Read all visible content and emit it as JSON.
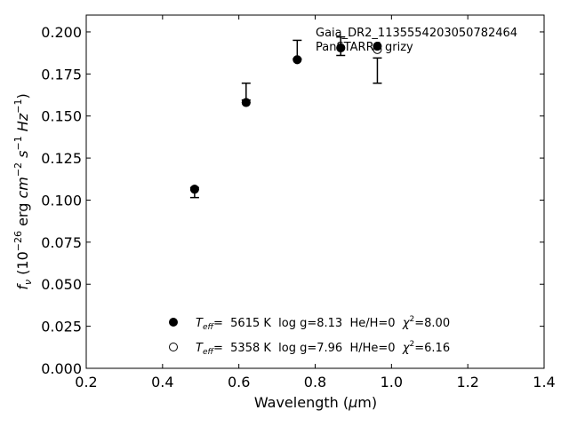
{
  "chart_data": {
    "type": "scatter",
    "title": "",
    "xlabel": "Wavelength (μm)",
    "ylabel": "fν (10⁻²⁶ erg cm⁻² s⁻¹ Hz⁻¹)",
    "xlim": [
      0.2,
      1.4
    ],
    "ylim": [
      0.0,
      0.21
    ],
    "x_ticks": [
      "0.2",
      "0.4",
      "0.6",
      "0.8",
      "1.0",
      "1.2",
      "1.4"
    ],
    "y_ticks": [
      "0.000",
      "0.025",
      "0.050",
      "0.075",
      "0.100",
      "0.125",
      "0.150",
      "0.175",
      "0.200"
    ],
    "grid": false,
    "annotations": [
      "Gaia_DR2_1135554203050782464",
      "PanSTARRS grizy"
    ],
    "observed": {
      "x": [
        0.484,
        0.619,
        0.753,
        0.867,
        0.963
      ],
      "y": [
        0.1045,
        0.1645,
        0.1895,
        0.1915,
        0.177
      ],
      "yerr": [
        0.003,
        0.005,
        0.0055,
        0.0055,
        0.0075
      ]
    },
    "series": [
      {
        "marker": "filled-circle",
        "label": "T_eff=  5615 K  log g=8.13  He/H=0  χ²=8.00",
        "x": [
          0.484,
          0.619,
          0.753,
          0.867,
          0.963
        ],
        "y": [
          0.1065,
          0.158,
          0.1835,
          0.1905,
          0.1915
        ]
      },
      {
        "marker": "open-circle",
        "label": "T_eff=  5358 K  log g=7.96  H/He=0  χ²=6.16",
        "x": [
          0.484,
          0.619,
          0.753,
          0.867,
          0.963
        ],
        "y": [
          0.1065,
          0.158,
          0.1835,
          0.1905,
          0.1895
        ]
      }
    ],
    "legend_position": "lower-center"
  }
}
